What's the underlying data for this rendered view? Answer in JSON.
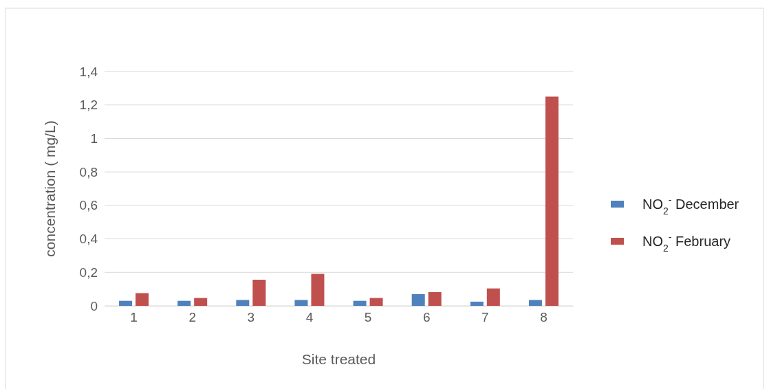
{
  "chart_data": {
    "type": "bar",
    "xlabel": "Site treated",
    "ylabel": "concentration ( mg/L)",
    "categories": [
      "1",
      "2",
      "3",
      "4",
      "5",
      "6",
      "7",
      "8"
    ],
    "series": [
      {
        "name": "NO$_{2}$$^{-}$ December",
        "color": "#4f81bd",
        "values": [
          0.03,
          0.03,
          0.035,
          0.035,
          0.03,
          0.07,
          0.025,
          0.035
        ]
      },
      {
        "name": "NO$_{2}$$^{-}$ February",
        "color": "#c0504d",
        "values": [
          0.076,
          0.047,
          0.156,
          0.191,
          0.047,
          0.082,
          0.104,
          1.25
        ]
      }
    ],
    "ylim": [
      0,
      1.4
    ],
    "yticks": [
      0,
      {
        "value": 0.2,
        "label": "0,2"
      },
      {
        "value": 0.4,
        "label": "0,4"
      },
      {
        "value": 0.6,
        "label": "0,6"
      },
      {
        "value": 0.8,
        "label": "0,8"
      },
      1,
      {
        "value": 1.2,
        "label": "1,2"
      },
      {
        "value": 1.4,
        "label": "1,4"
      }
    ],
    "grid": "y",
    "legend": "right"
  }
}
